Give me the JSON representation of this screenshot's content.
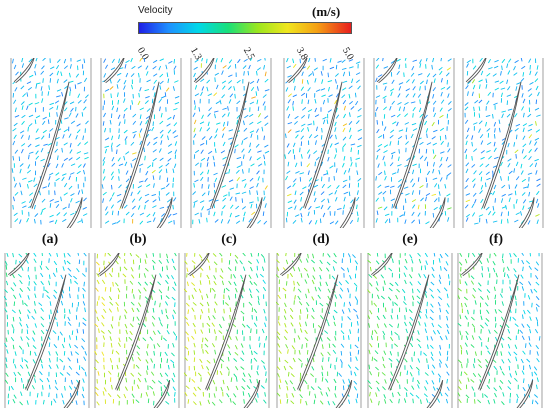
{
  "colorbar": {
    "title": "Velocity",
    "unit": "(m/s)",
    "ticks": [
      "0.0",
      "1.3",
      "2.5",
      "3.8",
      "5.0"
    ]
  },
  "panel_labels": [
    "(a)",
    "(b)",
    "(c)",
    "(d)",
    "(e)",
    "(f)"
  ],
  "colors": {
    "low": "#1e1ee6",
    "mid_low": "#00d8e8",
    "mid": "#18e07a",
    "mid_high": "#f0e61e",
    "high": "#e81e1e"
  }
}
